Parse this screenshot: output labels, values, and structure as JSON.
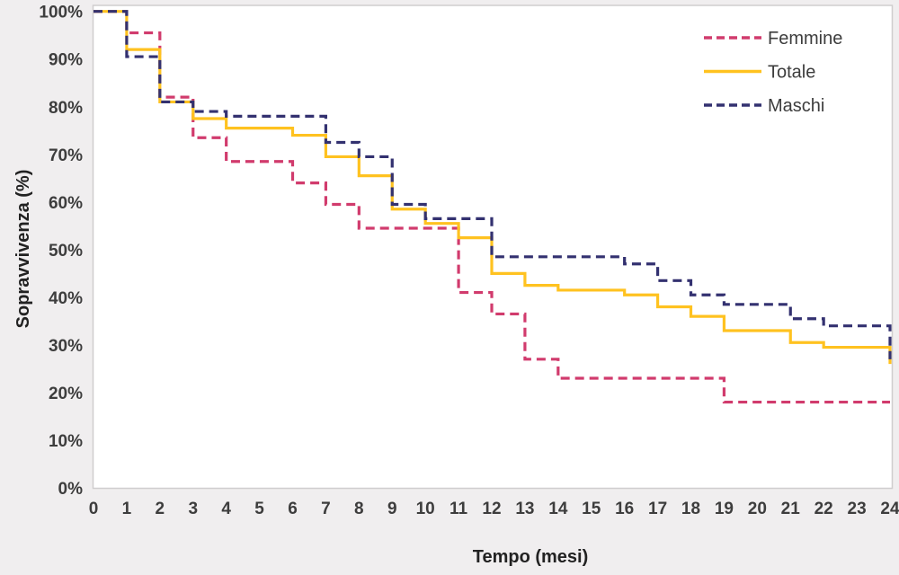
{
  "chart_data": {
    "type": "line",
    "subtype": "kaplan-meier-step",
    "title": "",
    "xlabel": "Tempo (mesi)",
    "ylabel": "Sopravvivenza (%)",
    "xlim": [
      0,
      24
    ],
    "ylim": [
      0,
      100
    ],
    "grid": false,
    "legend_position": "top-right",
    "x_ticks": [
      0,
      1,
      2,
      3,
      4,
      5,
      6,
      7,
      8,
      9,
      10,
      11,
      12,
      13,
      14,
      15,
      16,
      17,
      18,
      19,
      20,
      21,
      22,
      23,
      24
    ],
    "y_ticks": [
      "100%",
      "90%",
      "80%",
      "70%",
      "60%",
      "50%",
      "40%",
      "30%",
      "20%",
      "10%",
      "0%"
    ],
    "y_tick_values": [
      100,
      90,
      80,
      70,
      60,
      50,
      40,
      30,
      20,
      10,
      0
    ],
    "legend": [
      "Femmine",
      "Totale",
      "Maschi"
    ],
    "series": [
      {
        "name": "Femmine",
        "color": "#d13b6d",
        "style": "dashed",
        "points": [
          [
            0,
            100
          ],
          [
            1,
            95.5
          ],
          [
            2,
            82
          ],
          [
            3,
            73.5
          ],
          [
            4,
            68.5
          ],
          [
            6,
            64
          ],
          [
            7,
            59.5
          ],
          [
            8,
            54.5
          ],
          [
            11,
            41
          ],
          [
            12,
            36.5
          ],
          [
            13,
            27
          ],
          [
            14,
            23
          ],
          [
            19,
            18
          ],
          [
            24,
            18
          ]
        ]
      },
      {
        "name": "Totale",
        "color": "#ffc220",
        "style": "solid",
        "points": [
          [
            0,
            100
          ],
          [
            1,
            92
          ],
          [
            2,
            81
          ],
          [
            3,
            77.5
          ],
          [
            4,
            75.5
          ],
          [
            6,
            74
          ],
          [
            7,
            69.5
          ],
          [
            8,
            65.5
          ],
          [
            9,
            58.5
          ],
          [
            10,
            55.5
          ],
          [
            11,
            52.5
          ],
          [
            12,
            45
          ],
          [
            13,
            42.5
          ],
          [
            14,
            41.5
          ],
          [
            16,
            40.5
          ],
          [
            17,
            38
          ],
          [
            18,
            36
          ],
          [
            19,
            33
          ],
          [
            21,
            30.5
          ],
          [
            22,
            29.5
          ],
          [
            24,
            26
          ]
        ]
      },
      {
        "name": "Maschi",
        "color": "#333170",
        "style": "dashed",
        "points": [
          [
            0,
            100
          ],
          [
            1,
            90.5
          ],
          [
            2,
            81
          ],
          [
            3,
            79
          ],
          [
            4,
            78
          ],
          [
            7,
            72.5
          ],
          [
            8,
            69.5
          ],
          [
            9,
            59.5
          ],
          [
            10,
            56.5
          ],
          [
            12,
            48.5
          ],
          [
            16,
            47
          ],
          [
            17,
            43.5
          ],
          [
            18,
            40.5
          ],
          [
            19,
            38.5
          ],
          [
            21,
            35.5
          ],
          [
            22,
            34
          ],
          [
            24,
            27
          ]
        ]
      }
    ]
  },
  "style": {
    "page_bg": "#f0eeef",
    "plot_bg": "#ffffff",
    "plot_border": "#cfcdce",
    "tick_text": "#3d3d3d"
  }
}
